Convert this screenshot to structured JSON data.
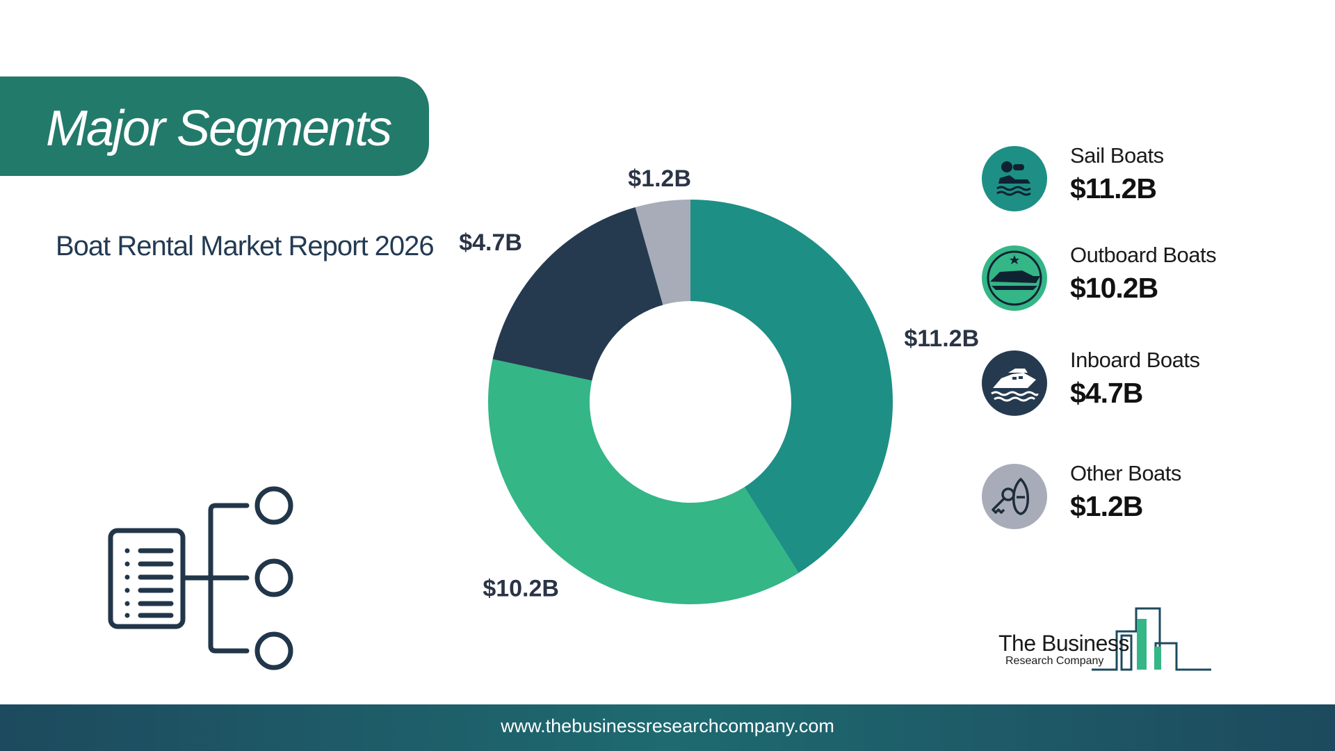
{
  "header": {
    "title": "Major Segments",
    "subtitle": "Boat Rental Market Report 2026"
  },
  "chart_data": {
    "type": "pie",
    "categories": [
      "Sail Boats",
      "Outboard Boats",
      "Inboard Boats",
      "Other Boats"
    ],
    "values": [
      11.2,
      10.2,
      4.7,
      1.2
    ],
    "value_labels": [
      "$11.2B",
      "$10.2B",
      "$4.7B",
      "$1.2B"
    ],
    "colors": [
      "#1e8f85",
      "#34b686",
      "#253a4f",
      "#a7acb8"
    ],
    "legend_placement": "right"
  },
  "legend": {
    "items": [
      {
        "name": "Sail Boats",
        "value": "$11.2B",
        "icon": "jet-ski-icon"
      },
      {
        "name": "Outboard Boats",
        "value": "$10.2B",
        "icon": "speedboat-icon"
      },
      {
        "name": "Inboard Boats",
        "value": "$4.7B",
        "icon": "yacht-icon"
      },
      {
        "name": "Other Boats",
        "value": "$1.2B",
        "icon": "boat-key-icon"
      }
    ]
  },
  "logo": {
    "line1": "The Business",
    "line2": "Research Company"
  },
  "footer": {
    "url": "www.thebusinessresearchcompany.com"
  }
}
